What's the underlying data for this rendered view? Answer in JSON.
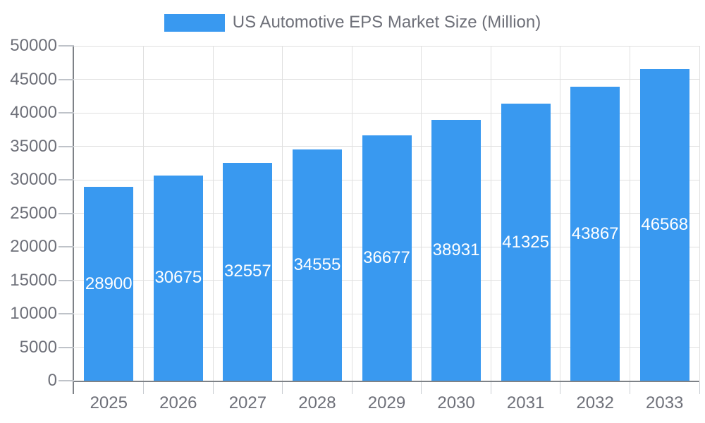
{
  "chart_data": {
    "type": "bar",
    "title": "US Automotive EPS Market Size (Million)",
    "legend_entries": [
      "US Automotive EPS Market Size (Million)"
    ],
    "legend_position": "top-center",
    "categories": [
      "2025",
      "2026",
      "2027",
      "2028",
      "2029",
      "2030",
      "2031",
      "2032",
      "2033"
    ],
    "values": [
      28900,
      30675,
      32557,
      34555,
      36677,
      38931,
      41325,
      43867,
      46568
    ],
    "xlabel": "",
    "ylabel": "",
    "ylim": [
      0,
      50000
    ],
    "ytick_step": 5000,
    "ytick_labels": [
      "0",
      "5000",
      "10000",
      "15000",
      "20000",
      "25000",
      "30000",
      "35000",
      "40000",
      "45000",
      "50000"
    ],
    "grid": true,
    "bar_label_position": "inside-center",
    "colors": {
      "bar": "#3999F0",
      "bar_value_label": "#FFFFFF",
      "axis_text": "#6E7079",
      "axis_line": "#7E8287",
      "gridline": "#E0E0E0",
      "y_tick": "#BFC3C9",
      "boundary_tick": "#C9CDD2",
      "background": "#FFFFFF"
    }
  }
}
